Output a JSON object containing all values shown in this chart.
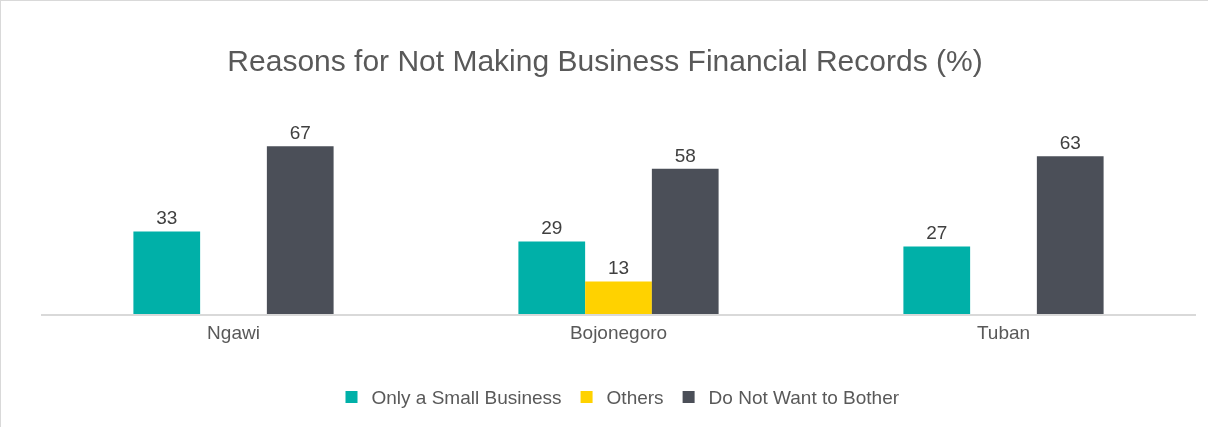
{
  "chart_data": {
    "type": "bar",
    "title": "Reasons for Not Making Business Financial Records (%)",
    "categories": [
      "Ngawi",
      "Bojonegoro",
      "Tuban"
    ],
    "series": [
      {
        "name": "Only a Small Business",
        "color": "#00b0a8",
        "values": [
          33,
          29,
          27
        ]
      },
      {
        "name": "Others",
        "color": "#ffd200",
        "values": [
          null,
          13,
          null
        ]
      },
      {
        "name": "Do Not Want to Bother",
        "color": "#4b4f58",
        "values": [
          67,
          58,
          63
        ]
      }
    ],
    "data_labels": true,
    "grid": false,
    "legend": "bottom"
  }
}
